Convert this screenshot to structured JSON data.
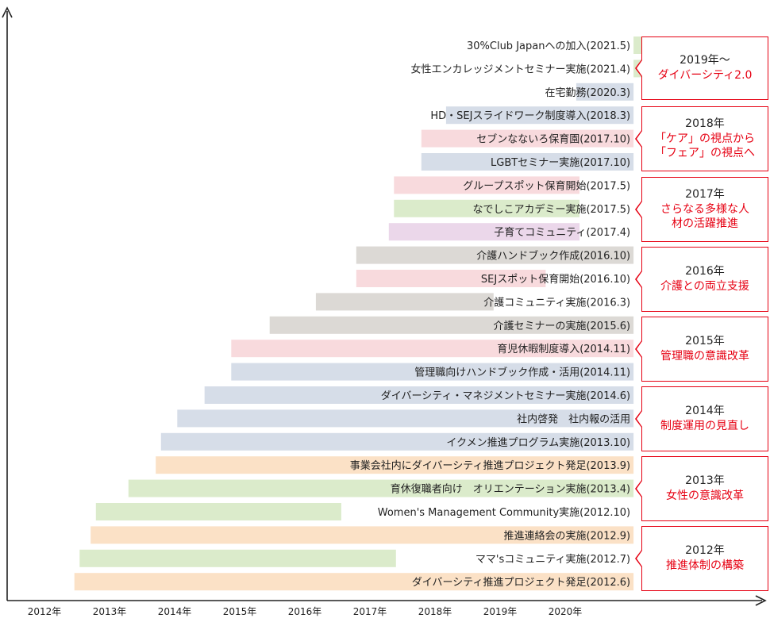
{
  "colors": {
    "green": "#dbebcb",
    "blue": "#d6dde8",
    "pink": "#f8dadd",
    "purple": "#ebd7ea",
    "gray": "#dcd9d5",
    "orange": "#fbe1c6",
    "accent_red": "#e60012",
    "axis": "#222222"
  },
  "chart_data": {
    "type": "bar",
    "orientation": "horizontal-timeline",
    "x_axis": {
      "min": 2012.0,
      "max": 2021.05,
      "tick_values": [
        2012,
        2013,
        2014,
        2015,
        2016,
        2017,
        2018,
        2019,
        2020
      ],
      "tick_labels": [
        "2012年",
        "2013年",
        "2014年",
        "2015年",
        "2016年",
        "2017年",
        "2018年",
        "2019年",
        "2020年"
      ]
    },
    "xlabel": "",
    "ylabel": "",
    "grid": false,
    "bars": [
      {
        "label": "30%Club Japanへの加入(2021.5)",
        "start": 2021.37,
        "end": 2021.05,
        "color": "green"
      },
      {
        "label": "女性エンカレッジメントセミナー実施(2021.4)",
        "start": 2021.29,
        "end": 2021.05,
        "color": "green"
      },
      {
        "label": "在宅勤務(2020.3)",
        "start": 2020.17,
        "end": 2021.05,
        "color": "blue"
      },
      {
        "label": "HD・SEJスライドワーク制度導入(2018.3)",
        "start": 2018.17,
        "end": 2021.05,
        "color": "blue"
      },
      {
        "label": "セブンなないろ保育園(2017.10)",
        "start": 2017.79,
        "end": 2021.05,
        "color": "pink"
      },
      {
        "label": "LGBTセミナー実施(2017.10)",
        "start": 2017.79,
        "end": 2021.05,
        "color": "blue"
      },
      {
        "label": "グループスポット保育開始(2017.5)",
        "start": 2017.37,
        "end": 2020.22,
        "color": "pink"
      },
      {
        "label": "なでしこアカデミー実施(2017.5)",
        "start": 2017.37,
        "end": 2020.22,
        "color": "green"
      },
      {
        "label": "子育てコミュニティ(2017.4)",
        "start": 2017.29,
        "end": 2020.22,
        "color": "purple"
      },
      {
        "label": "介護ハンドブック作成(2016.10)",
        "start": 2016.79,
        "end": 2021.05,
        "color": "gray"
      },
      {
        "label": "SEJスポット保育開始(2016.10)",
        "start": 2016.79,
        "end": 2019.7,
        "color": "pink"
      },
      {
        "label": "介護コミュニティ実施(2016.3)",
        "start": 2016.17,
        "end": 2018.9,
        "color": "gray"
      },
      {
        "label": "介護セミナーの実施(2015.6)",
        "start": 2015.46,
        "end": 2021.05,
        "color": "gray"
      },
      {
        "label": "育児休暇制度導入(2014.11)",
        "start": 2014.87,
        "end": 2021.05,
        "color": "pink"
      },
      {
        "label": "管理職向けハンドブック作成・活用(2014.11)",
        "start": 2014.87,
        "end": 2021.05,
        "color": "blue"
      },
      {
        "label": "ダイバーシティ・マネジメントセミナー実施(2014.6)",
        "start": 2014.46,
        "end": 2021.05,
        "color": "blue"
      },
      {
        "label": "社内啓発　社内報の活用",
        "start": 2014.04,
        "end": 2021.05,
        "color": "blue"
      },
      {
        "label": "イクメン推進プログラム実施(2013.10)",
        "start": 2013.79,
        "end": 2021.05,
        "color": "blue"
      },
      {
        "label": "事業会社内にダイバーシティ推進プロジェクト発足(2013.9)",
        "start": 2013.71,
        "end": 2021.05,
        "color": "orange"
      },
      {
        "label": "育休復職者向け　オリエンテーション実施(2013.4)",
        "start": 2013.29,
        "end": 2021.05,
        "color": "green"
      },
      {
        "label": "Women's Management Community実施(2012.10)",
        "start": 2012.79,
        "end": 2016.56,
        "color": "green"
      },
      {
        "label": "推進連絡会の実施(2012.9)",
        "start": 2012.71,
        "end": 2021.05,
        "color": "orange"
      },
      {
        "label": "ママ'sコミュニティ実施(2012.7)",
        "start": 2012.54,
        "end": 2017.4,
        "color": "green"
      },
      {
        "label": "ダイバーシティ推進プロジェクト発足(2012.6)",
        "start": 2012.46,
        "end": 2021.05,
        "color": "orange"
      }
    ]
  },
  "phases": [
    {
      "year": "2019年～",
      "theme": "ダイバーシティ2.0"
    },
    {
      "year": "2018年",
      "theme": "「ケア」の視点から「フェア」の視点へ"
    },
    {
      "year": "2017年",
      "theme": "さらなる多様な人材の活躍推進"
    },
    {
      "year": "2016年",
      "theme": "介護との両立支援"
    },
    {
      "year": "2015年",
      "theme": "管理職の意識改革"
    },
    {
      "year": "2014年",
      "theme": "制度運用の見直し"
    },
    {
      "year": "2013年",
      "theme": "女性の意識改革"
    },
    {
      "year": "2012年",
      "theme": "推進体制の構築"
    }
  ]
}
